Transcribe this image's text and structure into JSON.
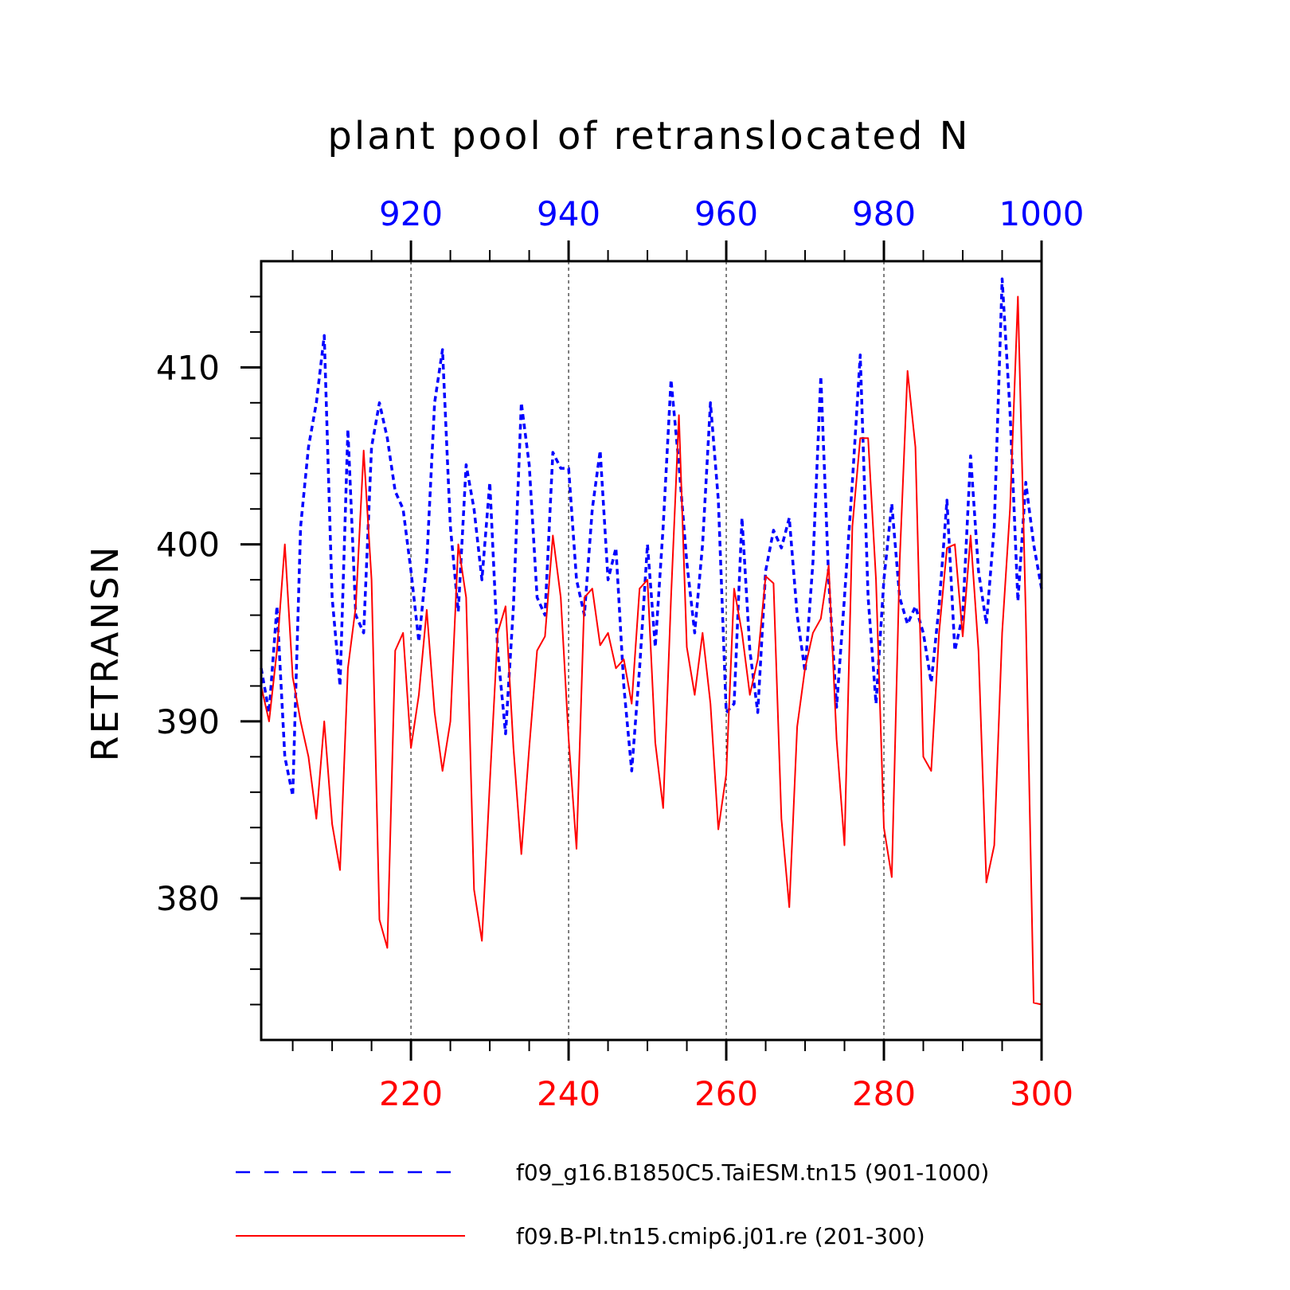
{
  "chart_data": {
    "type": "line",
    "title": "plant pool of retranslocated N",
    "ylabel": "RETRANSN",
    "ylim": [
      372,
      416
    ],
    "yticks": [
      "380",
      "390",
      "400",
      "410"
    ],
    "y_minor_step": 2,
    "x_bottom": {
      "range": [
        201,
        300
      ],
      "ticks": [
        "220",
        "240",
        "260",
        "280",
        "300"
      ],
      "color": "#ff0000"
    },
    "x_top": {
      "range": [
        901,
        1000
      ],
      "ticks": [
        "920",
        "940",
        "960",
        "980",
        "1000"
      ],
      "color": "#0000ff"
    },
    "grid": "vertical dashed at major ticks",
    "legend_position": "bottom",
    "series": [
      {
        "name": "f09_g16.B1850C5.TaiESM.tn15 (901-1000)",
        "color": "#0000ff",
        "style": "dashed",
        "axis": "top",
        "x": [
          901,
          902,
          903,
          904,
          905,
          906,
          907,
          908,
          909,
          910,
          911,
          912,
          913,
          914,
          915,
          916,
          917,
          918,
          919,
          920,
          921,
          922,
          923,
          924,
          925,
          926,
          927,
          928,
          929,
          930,
          931,
          932,
          933,
          934,
          935,
          936,
          937,
          938,
          939,
          940,
          941,
          942,
          943,
          944,
          945,
          946,
          947,
          948,
          949,
          950,
          951,
          952,
          953,
          954,
          955,
          956,
          957,
          958,
          959,
          960,
          961,
          962,
          963,
          964,
          965,
          966,
          967,
          968,
          969,
          970,
          971,
          972,
          973,
          974,
          975,
          976,
          977,
          978,
          979,
          980,
          981,
          982,
          983,
          984,
          985,
          986,
          987,
          988,
          989,
          990,
          991,
          992,
          993,
          994,
          995,
          996,
          997,
          998,
          999,
          1000
        ],
        "values": [
          393.0,
          390.5,
          396.5,
          388.0,
          385.8,
          401.0,
          405.5,
          408.0,
          411.8,
          397.0,
          392.0,
          406.5,
          396.0,
          395.0,
          405.5,
          408.0,
          406.0,
          403.0,
          402.0,
          398.5,
          394.5,
          399.0,
          408.0,
          411.0,
          401.0,
          396.2,
          404.5,
          402.0,
          398.0,
          403.5,
          394.0,
          389.3,
          396.5,
          408.0,
          404.5,
          397.0,
          396.0,
          405.2,
          404.3,
          404.3,
          398.0,
          396.0,
          402.0,
          405.3,
          398.0,
          399.8,
          392.0,
          387.2,
          393.0,
          400.0,
          394.2,
          401.0,
          409.3,
          404.5,
          399.0,
          395.0,
          400.0,
          408.0,
          402.5,
          390.5,
          391.0,
          401.5,
          394.0,
          390.5,
          398.5,
          400.8,
          399.8,
          401.5,
          396.0,
          392.8,
          399.0,
          409.5,
          398.0,
          390.8,
          397.0,
          403.5,
          410.7,
          397.0,
          391.0,
          398.0,
          402.3,
          397.0,
          395.5,
          396.5,
          395.0,
          392.2,
          396.5,
          402.5,
          394.0,
          396.0,
          405.0,
          398.5,
          395.5,
          401.0,
          415.0,
          407.5,
          396.8,
          403.5,
          400.0,
          397.5
        ]
      },
      {
        "name": "f09.B-Pl.tn15.cmip6.j01.re (201-300)",
        "color": "#ff0000",
        "style": "solid",
        "axis": "bottom",
        "x": [
          201,
          202,
          203,
          204,
          205,
          206,
          207,
          208,
          209,
          210,
          211,
          212,
          213,
          214,
          215,
          216,
          217,
          218,
          219,
          220,
          221,
          222,
          223,
          224,
          225,
          226,
          227,
          228,
          229,
          230,
          231,
          232,
          233,
          234,
          235,
          236,
          237,
          238,
          239,
          240,
          241,
          242,
          243,
          244,
          245,
          246,
          247,
          248,
          249,
          250,
          251,
          252,
          253,
          254,
          255,
          256,
          257,
          258,
          259,
          260,
          261,
          262,
          263,
          264,
          265,
          266,
          267,
          268,
          269,
          270,
          271,
          272,
          273,
          274,
          275,
          276,
          277,
          278,
          279,
          280,
          281,
          282,
          283,
          284,
          285,
          286,
          287,
          288,
          289,
          290,
          291,
          292,
          293,
          294,
          295,
          296,
          297,
          298,
          299,
          300
        ],
        "values": [
          392.0,
          390.0,
          394.0,
          400.0,
          392.5,
          390.0,
          388.0,
          384.5,
          390.0,
          384.2,
          381.6,
          393.0,
          396.5,
          405.3,
          398.0,
          378.8,
          377.2,
          394.0,
          395.0,
          388.5,
          391.5,
          396.3,
          390.5,
          387.2,
          390.0,
          400.0,
          397.0,
          380.5,
          377.6,
          386.5,
          395.0,
          396.5,
          388.5,
          382.5,
          388.5,
          394.0,
          394.8,
          400.5,
          397.0,
          389.0,
          382.8,
          397.0,
          397.5,
          394.3,
          395.0,
          393.0,
          393.5,
          391.0,
          397.5,
          398.0,
          388.8,
          385.1,
          397.0,
          407.3,
          394.2,
          391.5,
          395.0,
          391.0,
          383.9,
          387.0,
          397.5,
          395.0,
          391.5,
          393.5,
          398.2,
          397.8,
          384.5,
          379.5,
          389.7,
          393.0,
          395.0,
          395.8,
          398.8,
          389.0,
          383.0,
          401.0,
          406.0,
          406.0,
          398.0,
          384.0,
          381.2,
          399.0,
          409.8,
          405.5,
          388.0,
          387.2,
          395.0,
          399.8,
          400.0,
          394.8,
          400.5,
          394.0,
          380.9,
          383.0,
          395.0,
          402.0,
          414.0,
          396.0,
          374.1,
          374.0
        ]
      }
    ]
  }
}
